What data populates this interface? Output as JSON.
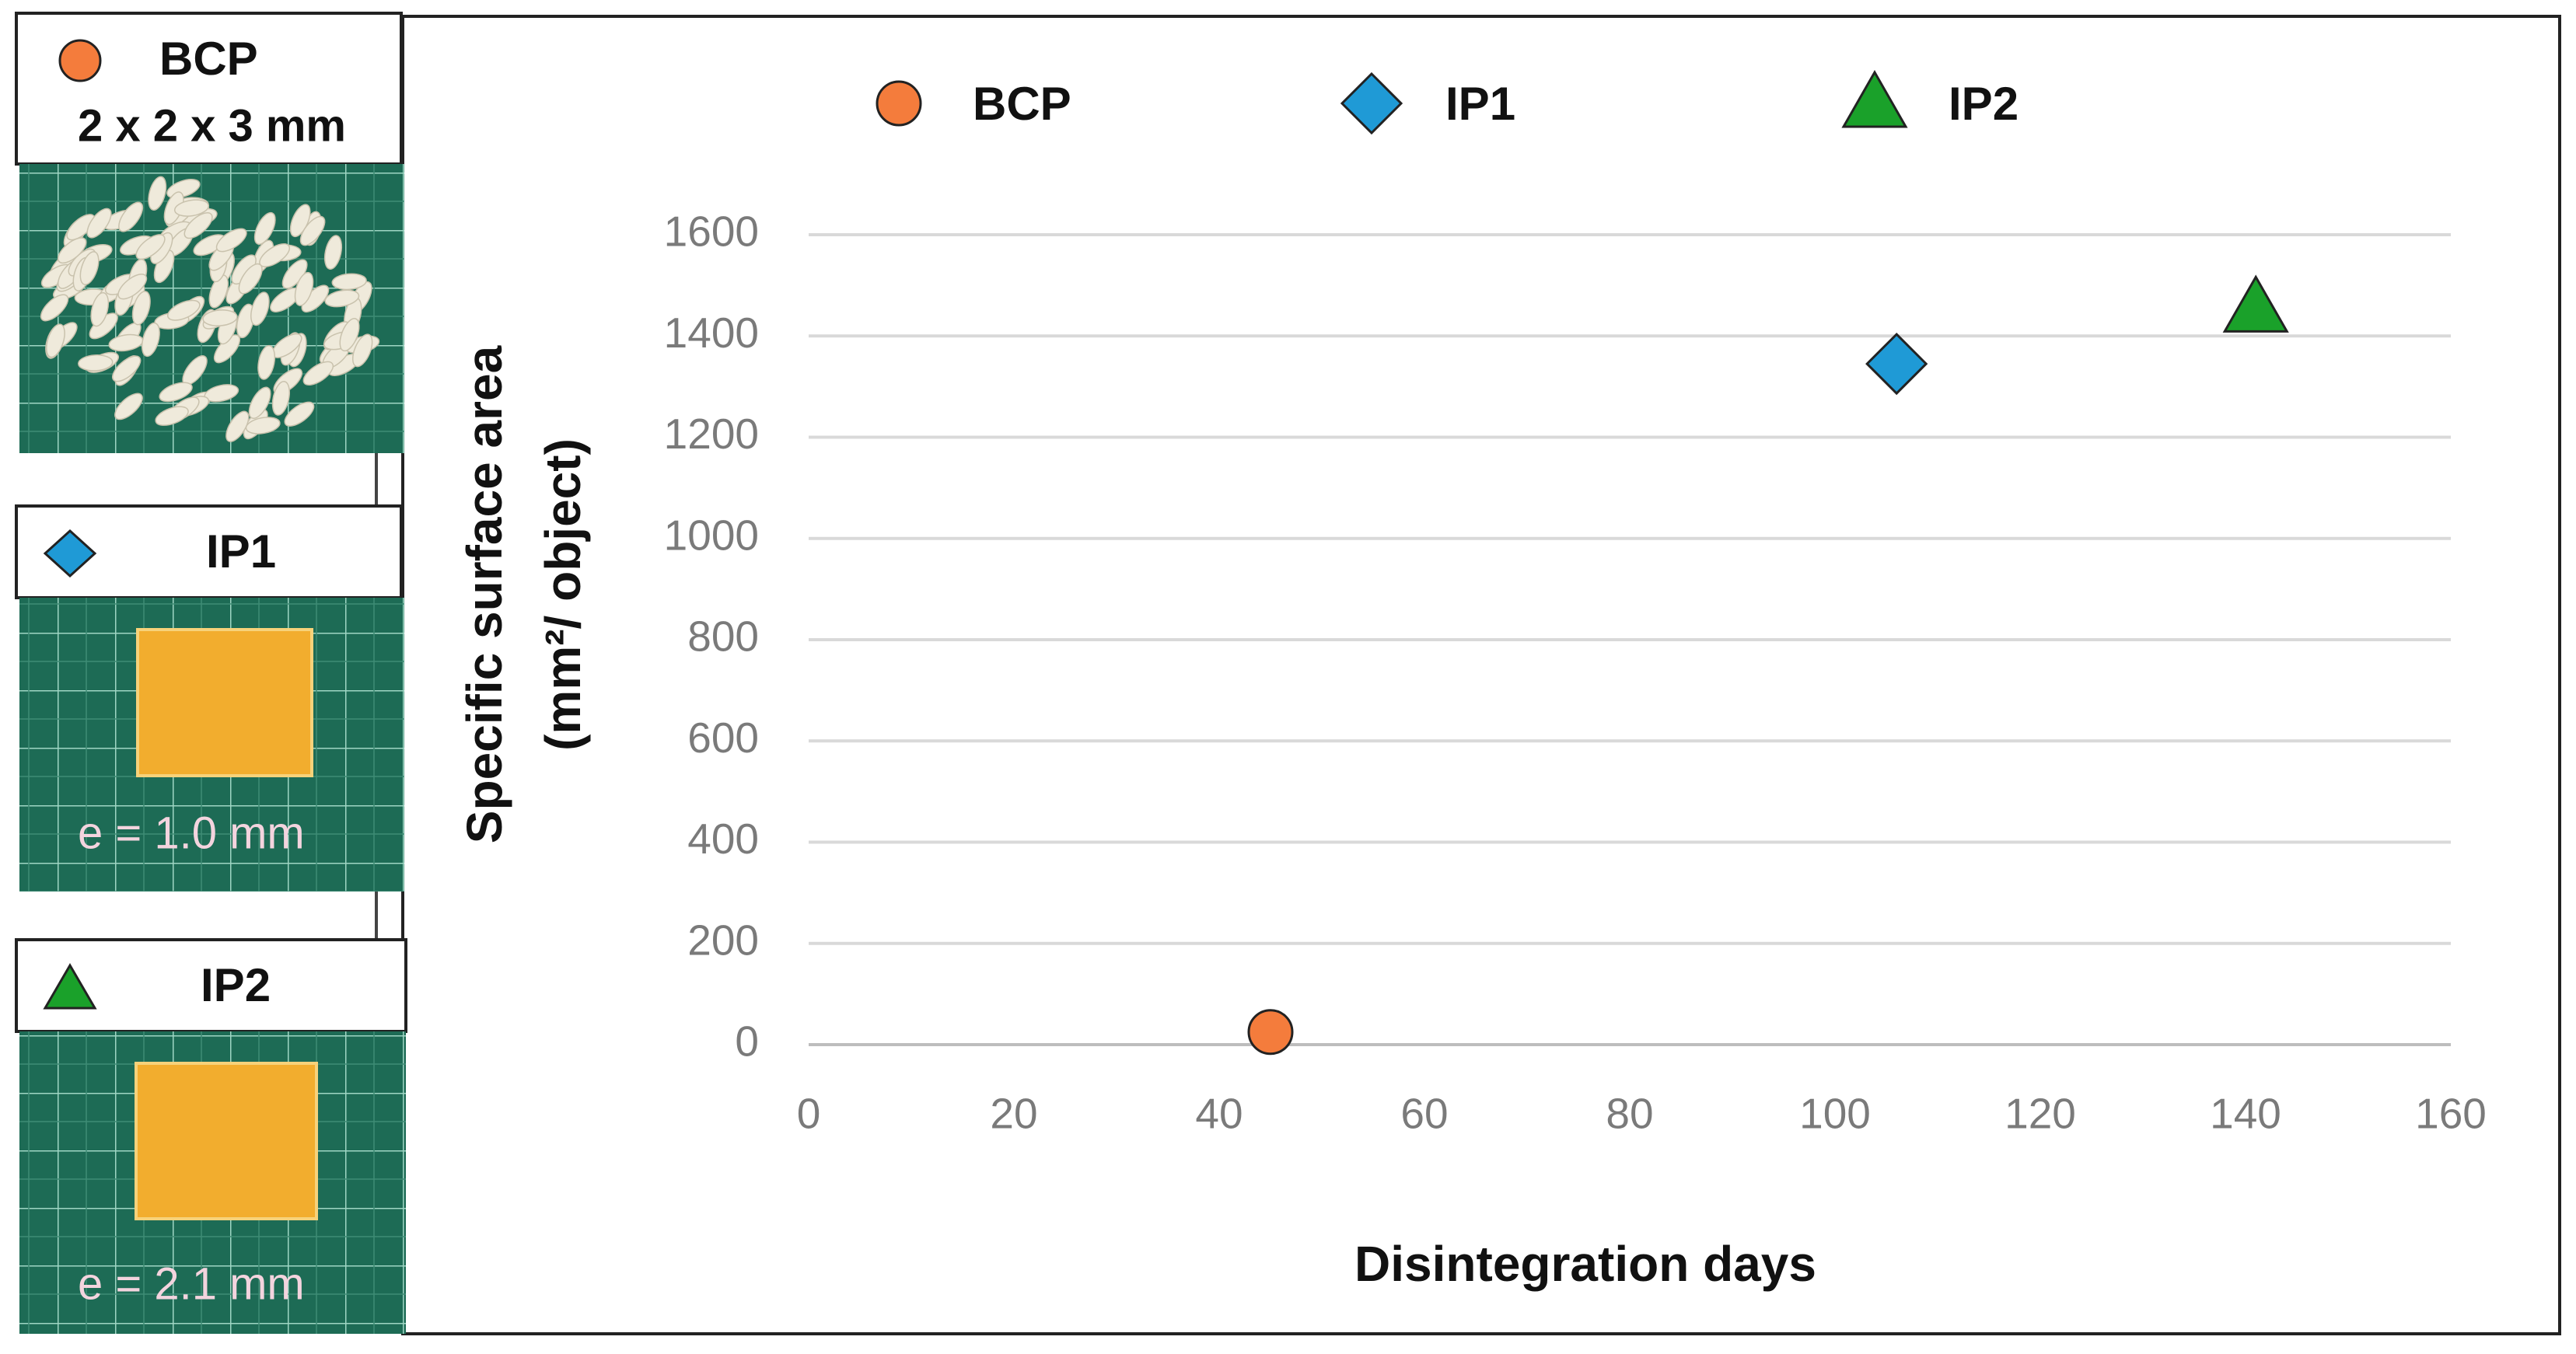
{
  "chart_data": {
    "type": "scatter",
    "xlabel": "Disintegration days",
    "ylabel": [
      "Specific surface area",
      "(mm²/ object)"
    ],
    "xlim": [
      0,
      160
    ],
    "xticks": [
      0,
      20,
      40,
      60,
      80,
      100,
      120,
      140,
      160
    ],
    "ylim": [
      0,
      1600
    ],
    "yticks": [
      0,
      200,
      400,
      600,
      800,
      1000,
      1200,
      1400,
      1600
    ],
    "grid": true,
    "legend": "top",
    "series": [
      {
        "name": "BCP",
        "color": "#f47c3c",
        "marker": "circle",
        "x": [
          45
        ],
        "values": [
          25
        ]
      },
      {
        "name": "IP1",
        "color": "#1f9ad6",
        "marker": "diamond",
        "x": [
          106
        ],
        "values": [
          1345
        ]
      },
      {
        "name": "IP2",
        "color": "#1aa12a",
        "marker": "triangle",
        "x": [
          141
        ],
        "values": [
          1455
        ]
      }
    ],
    "panels": [
      {
        "label": "BCP",
        "size": "2 x 2 x 3 mm"
      },
      {
        "label": "IP1",
        "size": "e =  1.0 mm"
      },
      {
        "label": "IP2",
        "size": "e =  2.1 mm"
      }
    ]
  }
}
